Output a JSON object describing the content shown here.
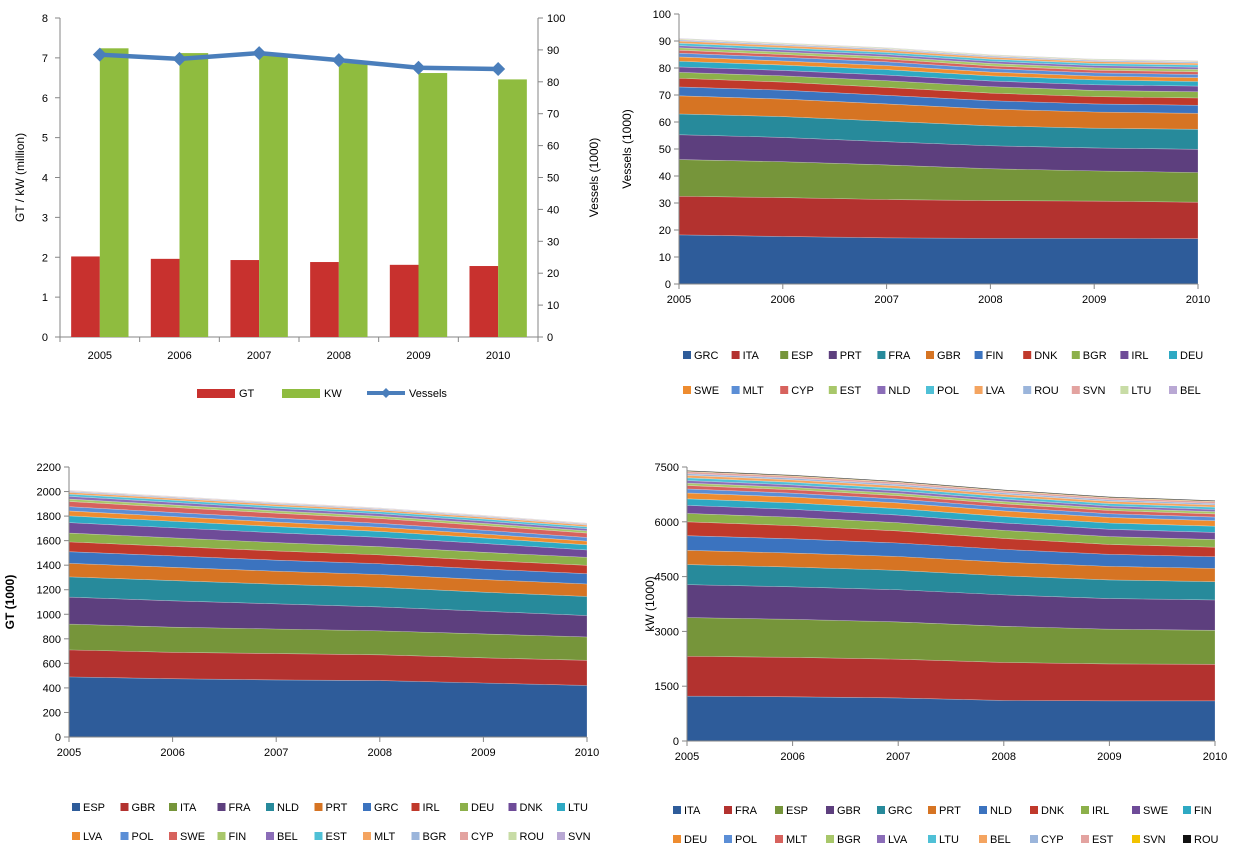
{
  "chart_data": [
    {
      "type": "bar",
      "x": [
        "2005",
        "2006",
        "2007",
        "2008",
        "2009",
        "2010"
      ],
      "ylabel": "GT / kW (million)",
      "y2label": "Vessels (1000)",
      "ylim": [
        0,
        8
      ],
      "y2lim": [
        0,
        100
      ],
      "yticks": [
        "0",
        "1",
        "2",
        "3",
        "4",
        "5",
        "6",
        "7",
        "8"
      ],
      "y2ticks": [
        "0",
        "10",
        "20",
        "30",
        "40",
        "50",
        "60",
        "70",
        "80",
        "90",
        "100"
      ],
      "series": [
        {
          "name": "GT",
          "kind": "bar",
          "axis": "left",
          "color": "#c8312e",
          "values": [
            2.02,
            1.96,
            1.93,
            1.88,
            1.81,
            1.78
          ]
        },
        {
          "name": "KW",
          "kind": "bar",
          "axis": "left",
          "color": "#8fbc3f",
          "values": [
            7.24,
            7.12,
            7.1,
            6.87,
            6.62,
            6.46
          ]
        },
        {
          "name": "Vessels",
          "kind": "line",
          "axis": "right",
          "color": "#4a7ebb",
          "values": [
            88.5,
            87.2,
            89.0,
            86.8,
            84.4,
            84.0
          ]
        }
      ],
      "legend": "bottom"
    },
    {
      "type": "area",
      "x": [
        "2005",
        "2006",
        "2007",
        "2008",
        "2009",
        "2010"
      ],
      "ylabel": "Vessels (1000)",
      "ylim": [
        0,
        100
      ],
      "yticks": [
        "0",
        "10",
        "20",
        "30",
        "40",
        "50",
        "60",
        "70",
        "80",
        "90",
        "100"
      ],
      "legend": "bottom",
      "series": [
        {
          "name": "GRC",
          "color": "#2e5c9a",
          "values": [
            18.2,
            17.6,
            17.1,
            16.9,
            16.9,
            16.8
          ]
        },
        {
          "name": "ITA",
          "color": "#b3322f",
          "values": [
            14.3,
            14.4,
            14.2,
            14.0,
            13.8,
            13.5
          ]
        },
        {
          "name": "ESP",
          "color": "#76953a",
          "values": [
            13.6,
            13.3,
            12.8,
            11.8,
            11.2,
            11.0
          ]
        },
        {
          "name": "PRT",
          "color": "#5d3f7e",
          "values": [
            9.2,
            9.0,
            8.6,
            8.5,
            8.5,
            8.6
          ]
        },
        {
          "name": "FRA",
          "color": "#278a9b",
          "values": [
            7.7,
            7.7,
            7.6,
            7.4,
            7.3,
            7.4
          ]
        },
        {
          "name": "GBR",
          "color": "#d67423",
          "values": [
            6.7,
            6.5,
            6.4,
            6.2,
            6.0,
            5.9
          ]
        },
        {
          "name": "FIN",
          "color": "#3b73bf",
          "values": [
            3.3,
            3.3,
            3.2,
            3.1,
            3.0,
            3.0
          ]
        },
        {
          "name": "DNK",
          "color": "#c0392b",
          "values": [
            3.2,
            3.0,
            2.9,
            2.8,
            2.7,
            2.7
          ]
        },
        {
          "name": "BGR",
          "color": "#8cb04a",
          "values": [
            2.2,
            2.3,
            2.5,
            2.4,
            2.3,
            2.3
          ]
        },
        {
          "name": "IRL",
          "color": "#6e4b98",
          "values": [
            2.0,
            2.0,
            2.1,
            2.1,
            2.1,
            2.1
          ]
        },
        {
          "name": "DEU",
          "color": "#2ea9c3",
          "values": [
            2.1,
            2.0,
            2.0,
            1.9,
            1.8,
            1.7
          ]
        },
        {
          "name": "SWE",
          "color": "#ee8c2f",
          "values": [
            1.6,
            1.5,
            1.5,
            1.4,
            1.4,
            1.4
          ]
        },
        {
          "name": "MLT",
          "color": "#5b8ed6",
          "values": [
            1.4,
            1.4,
            1.4,
            1.3,
            1.2,
            1.2
          ]
        },
        {
          "name": "CYP",
          "color": "#d7625d",
          "values": [
            1.1,
            1.0,
            1.0,
            1.0,
            1.0,
            1.0
          ]
        },
        {
          "name": "EST",
          "color": "#a8c76a",
          "values": [
            0.9,
            0.9,
            0.9,
            0.9,
            0.9,
            0.9
          ]
        },
        {
          "name": "NLD",
          "color": "#8b6db8",
          "values": [
            0.8,
            0.8,
            0.8,
            0.8,
            0.8,
            0.8
          ]
        },
        {
          "name": "POL",
          "color": "#4fc0d6",
          "values": [
            0.9,
            0.8,
            0.8,
            0.8,
            0.8,
            0.8
          ]
        },
        {
          "name": "LVA",
          "color": "#f4a460",
          "values": [
            0.8,
            0.8,
            0.8,
            0.7,
            0.7,
            0.7
          ]
        },
        {
          "name": "ROU",
          "color": "#9bb5db",
          "values": [
            0.4,
            0.4,
            0.4,
            0.4,
            0.4,
            0.4
          ]
        },
        {
          "name": "SVN",
          "color": "#e3a3a0",
          "values": [
            0.2,
            0.2,
            0.2,
            0.2,
            0.2,
            0.2
          ]
        },
        {
          "name": "LTU",
          "color": "#c8dca6",
          "values": [
            0.3,
            0.3,
            0.3,
            0.3,
            0.3,
            0.3
          ]
        },
        {
          "name": "BEL",
          "color": "#b9a8d4",
          "values": [
            0.1,
            0.1,
            0.1,
            0.1,
            0.1,
            0.1
          ]
        }
      ]
    },
    {
      "type": "area",
      "x": [
        "2005",
        "2006",
        "2007",
        "2008",
        "2009",
        "2010"
      ],
      "ylabel": "GT (1000)",
      "ylim": [
        0,
        2200
      ],
      "yticks": [
        "0",
        "200",
        "400",
        "600",
        "800",
        "1000",
        "1200",
        "1400",
        "1600",
        "1800",
        "2000",
        "2200"
      ],
      "legend": "bottom",
      "series": [
        {
          "name": "ESP",
          "color": "#2e5c9a",
          "values": [
            490,
            475,
            465,
            460,
            440,
            420
          ]
        },
        {
          "name": "GBR",
          "color": "#b3322f",
          "values": [
            220,
            215,
            215,
            210,
            205,
            205
          ]
        },
        {
          "name": "ITA",
          "color": "#76953a",
          "values": [
            210,
            205,
            200,
            195,
            195,
            190
          ]
        },
        {
          "name": "FRA",
          "color": "#5d3f7e",
          "values": [
            220,
            215,
            205,
            195,
            185,
            175
          ]
        },
        {
          "name": "NLD",
          "color": "#278a9b",
          "values": [
            165,
            165,
            160,
            160,
            155,
            155
          ]
        },
        {
          "name": "PRT",
          "color": "#d67423",
          "values": [
            110,
            108,
            106,
            104,
            103,
            102
          ]
        },
        {
          "name": "GRC",
          "color": "#3b73bf",
          "values": [
            95,
            93,
            90,
            88,
            86,
            84
          ]
        },
        {
          "name": "IRL",
          "color": "#c0392b",
          "values": [
            80,
            77,
            75,
            72,
            70,
            68
          ]
        },
        {
          "name": "DEU",
          "color": "#8cb04a",
          "values": [
            72,
            70,
            68,
            67,
            66,
            65
          ]
        },
        {
          "name": "DNK",
          "color": "#6e4b98",
          "values": [
            85,
            82,
            80,
            76,
            72,
            60
          ]
        },
        {
          "name": "LTU",
          "color": "#2ea9c3",
          "values": [
            55,
            53,
            51,
            48,
            45,
            42
          ]
        },
        {
          "name": "LVA",
          "color": "#ee8c2f",
          "values": [
            40,
            38,
            36,
            34,
            32,
            30
          ]
        },
        {
          "name": "POL",
          "color": "#5b8ed6",
          "values": [
            35,
            34,
            33,
            32,
            31,
            30
          ]
        },
        {
          "name": "SWE",
          "color": "#d7625d",
          "values": [
            42,
            41,
            40,
            39,
            38,
            36
          ]
        },
        {
          "name": "FIN",
          "color": "#a8c76a",
          "values": [
            20,
            20,
            19,
            19,
            18,
            18
          ]
        },
        {
          "name": "BEL",
          "color": "#8b6db8",
          "values": [
            22,
            21,
            20,
            20,
            19,
            17
          ]
        },
        {
          "name": "EST",
          "color": "#4fc0d6",
          "values": [
            18,
            18,
            17,
            17,
            17,
            16
          ]
        },
        {
          "name": "MLT",
          "color": "#f4a460",
          "values": [
            15,
            15,
            15,
            14,
            14,
            14
          ]
        },
        {
          "name": "BGR",
          "color": "#9bb5db",
          "values": [
            8,
            8,
            8,
            8,
            7,
            7
          ]
        },
        {
          "name": "CYP",
          "color": "#e3a3a0",
          "values": [
            5,
            5,
            5,
            5,
            5,
            5
          ]
        },
        {
          "name": "ROU",
          "color": "#c8dca6",
          "values": [
            3,
            3,
            3,
            3,
            3,
            3
          ]
        },
        {
          "name": "SVN",
          "color": "#b9a8d4",
          "values": [
            2,
            2,
            2,
            2,
            2,
            2
          ]
        }
      ]
    },
    {
      "type": "area",
      "x": [
        "2005",
        "2006",
        "2007",
        "2008",
        "2009",
        "2010"
      ],
      "ylabel": "kW (1000)",
      "ylim": [
        0,
        7500
      ],
      "yticks": [
        "0",
        "1500",
        "3000",
        "4500",
        "6000",
        "7500"
      ],
      "legend": "bottom",
      "series": [
        {
          "name": "ITA",
          "color": "#2e5c9a",
          "values": [
            1230,
            1210,
            1180,
            1110,
            1100,
            1100
          ]
        },
        {
          "name": "FRA",
          "color": "#b3322f",
          "values": [
            1090,
            1080,
            1060,
            1040,
            1010,
            1000
          ]
        },
        {
          "name": "ESP",
          "color": "#76953a",
          "values": [
            1060,
            1040,
            1020,
            990,
            950,
            930
          ]
        },
        {
          "name": "GBR",
          "color": "#5d3f7e",
          "values": [
            900,
            890,
            880,
            860,
            840,
            830
          ]
        },
        {
          "name": "GRC",
          "color": "#278a9b",
          "values": [
            550,
            540,
            530,
            520,
            510,
            500
          ]
        },
        {
          "name": "PRT",
          "color": "#d67423",
          "values": [
            390,
            385,
            380,
            375,
            370,
            365
          ]
        },
        {
          "name": "NLD",
          "color": "#3b73bf",
          "values": [
            400,
            390,
            370,
            350,
            330,
            320
          ]
        },
        {
          "name": "DNK",
          "color": "#c0392b",
          "values": [
            380,
            360,
            330,
            300,
            270,
            260
          ]
        },
        {
          "name": "IRL",
          "color": "#8cb04a",
          "values": [
            230,
            230,
            225,
            220,
            215,
            210
          ]
        },
        {
          "name": "SWE",
          "color": "#6e4b98",
          "values": [
            220,
            215,
            210,
            205,
            200,
            195
          ]
        },
        {
          "name": "FIN",
          "color": "#2ea9c3",
          "values": [
            180,
            178,
            176,
            174,
            172,
            170
          ]
        },
        {
          "name": "DEU",
          "color": "#ee8c2f",
          "values": [
            160,
            158,
            156,
            154,
            152,
            150
          ]
        },
        {
          "name": "POL",
          "color": "#5b8ed6",
          "values": [
            110,
            108,
            106,
            104,
            102,
            100
          ]
        },
        {
          "name": "MLT",
          "color": "#d7625d",
          "values": [
            95,
            93,
            92,
            90,
            88,
            86
          ]
        },
        {
          "name": "BGR",
          "color": "#a8c76a",
          "values": [
            65,
            65,
            64,
            63,
            62,
            61
          ]
        },
        {
          "name": "LVA",
          "color": "#8b6db8",
          "values": [
            70,
            68,
            66,
            64,
            62,
            60
          ]
        },
        {
          "name": "LTU",
          "color": "#4fc0d6",
          "values": [
            75,
            72,
            70,
            68,
            66,
            64
          ]
        },
        {
          "name": "BEL",
          "color": "#f4a460",
          "values": [
            68,
            67,
            66,
            64,
            62,
            60
          ]
        },
        {
          "name": "CYP",
          "color": "#9bb5db",
          "values": [
            45,
            45,
            44,
            43,
            42,
            41
          ]
        },
        {
          "name": "EST",
          "color": "#e3a3a0",
          "values": [
            55,
            54,
            53,
            52,
            51,
            50
          ]
        },
        {
          "name": "SVN",
          "color": "#f2c200",
          "values": [
            12,
            12,
            12,
            12,
            12,
            12
          ]
        },
        {
          "name": "ROU",
          "color": "#111111",
          "values": [
            20,
            20,
            20,
            20,
            20,
            20
          ]
        }
      ]
    }
  ]
}
